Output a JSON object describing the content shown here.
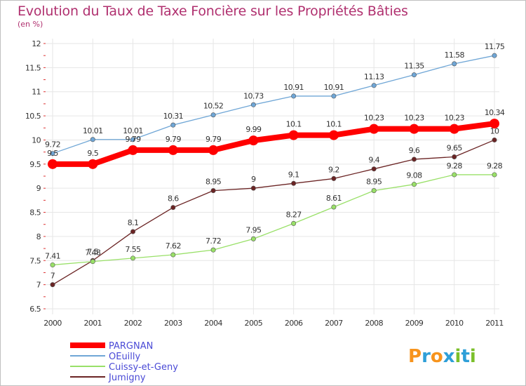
{
  "title": "Evolution du Taux de Taxe Foncière sur les Propriétés Bâties",
  "subtitle": "(en %)",
  "logo": {
    "text": "Proxiti"
  },
  "chart_data": {
    "type": "line",
    "x": [
      "2000",
      "2001",
      "2002",
      "2003",
      "2004",
      "2005",
      "2006",
      "2007",
      "2008",
      "2009",
      "2010",
      "2011"
    ],
    "ylim": [
      6.5,
      12
    ],
    "yticks": [
      "6.5",
      "7",
      "7.5",
      "8",
      "8.5",
      "9",
      "9.5",
      "10",
      "10.5",
      "11",
      "11.5",
      "12"
    ],
    "grid": true,
    "series": [
      {
        "name": "PARGNAN",
        "color": "#ff0000",
        "width": 8,
        "radius": 7,
        "values": [
          9.5,
          9.5,
          9.79,
          9.79,
          9.79,
          9.99,
          10.1,
          10.1,
          10.23,
          10.23,
          10.23,
          10.34
        ],
        "labels": [
          "9.5",
          "9.5",
          "9.79",
          "9.79",
          "9.79",
          "9.99",
          "10.1",
          "10.1",
          "10.23",
          "10.23",
          "10.23",
          "10.34"
        ]
      },
      {
        "name": "OEuilly",
        "color": "#6fa6d6",
        "width": 1.3,
        "radius": 3.2,
        "values": [
          9.72,
          10.01,
          10.01,
          10.31,
          10.52,
          10.73,
          10.91,
          10.91,
          11.13,
          11.35,
          11.58,
          11.75
        ],
        "labels": [
          "9.72",
          "10.01",
          "10.01",
          "10.31",
          "10.52",
          "10.73",
          "10.91",
          "10.91",
          "11.13",
          "11.35",
          "11.58",
          "11.75"
        ]
      },
      {
        "name": "Cuissy-et-Geny",
        "color": "#99e068",
        "width": 1.3,
        "radius": 3.2,
        "values": [
          7.41,
          7.48,
          7.55,
          7.62,
          7.72,
          7.95,
          8.27,
          8.61,
          8.95,
          9.08,
          9.28,
          9.28
        ],
        "labels": [
          "7.41",
          "7.48",
          "7.55",
          "7.62",
          "7.72",
          "7.95",
          "8.27",
          "8.61",
          "8.95",
          "9.08",
          "9.28",
          "9.28"
        ]
      },
      {
        "name": "Jumigny",
        "color": "#6b2424",
        "width": 1.3,
        "radius": 3.2,
        "values": [
          7,
          7.5,
          8.1,
          8.6,
          8.95,
          9,
          9.1,
          9.2,
          9.4,
          9.6,
          9.65,
          10
        ],
        "labels": [
          "7",
          "7.5",
          "8.1",
          "8.6",
          "8.95",
          "9",
          "9.1",
          "9.2",
          "9.4",
          "9.6",
          "9.65",
          "10"
        ]
      }
    ],
    "legend": [
      "PARGNAN",
      "OEuilly",
      "Cuissy-et-Geny",
      "Jumigny"
    ]
  }
}
